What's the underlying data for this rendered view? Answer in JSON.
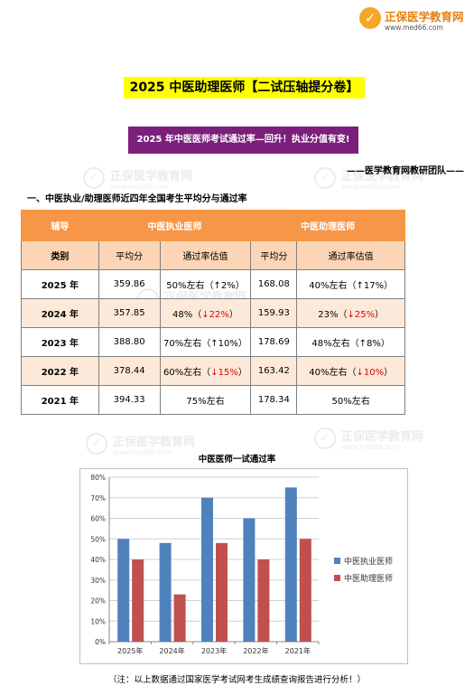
{
  "logo": {
    "glyph": "✓",
    "name": "正保医学教育网",
    "url": "www.med66.com"
  },
  "watermark": {
    "name": "正保医学教育网",
    "url": "www.med66.com"
  },
  "title": "2025 中医助理医师【二试压轴提分卷】",
  "subtitle": "2025 年中医医师考试通过率—回升！执业分值有变!",
  "author": "——医学教育网教研团队——",
  "section_heading": "一、中医执业/助理医师近四年全国考生平均分与通过率",
  "table": {
    "group_header": {
      "col0": "辅导",
      "zhiye": "中医执业医师",
      "zhuli": "中医助理医师"
    },
    "sub_header": {
      "col0": "类别",
      "avg": "平均分",
      "rate": "通过率估值",
      "avg2": "平均分",
      "rate2": "通过率估值"
    },
    "rows": [
      {
        "year": "2025 年",
        "zy_avg": "359.86",
        "zy_rate": "50%左右（",
        "zy_arrow": "↑",
        "zy_delta": "2%",
        "zy_close": "）",
        "zy_down": false,
        "zl_avg": "168.08",
        "zl_rate": "40%左右（",
        "zl_arrow": "↑",
        "zl_delta": "17%",
        "zl_close": "）",
        "zl_down": false
      },
      {
        "year": "2024 年",
        "zy_avg": "357.85",
        "zy_rate": "48%（",
        "zy_arrow": "↓",
        "zy_delta": "22%",
        "zy_close": "）",
        "zy_down": true,
        "zl_avg": "159.93",
        "zl_rate": "23%（",
        "zl_arrow": "↓",
        "zl_delta": "25%",
        "zl_close": "）",
        "zl_down": true
      },
      {
        "year": "2023 年",
        "zy_avg": "388.80",
        "zy_rate": "70%左右（",
        "zy_arrow": "↑",
        "zy_delta": "10%",
        "zy_close": "）",
        "zy_down": false,
        "zl_avg": "178.69",
        "zl_rate": "48%左右（",
        "zl_arrow": "↑",
        "zl_delta": "8%",
        "zl_close": "）",
        "zl_down": false
      },
      {
        "year": "2022 年",
        "zy_avg": "378.44",
        "zy_rate": "60%左右（",
        "zy_arrow": "↓",
        "zy_delta": "15%",
        "zy_close": "）",
        "zy_down": true,
        "zl_avg": "163.42",
        "zl_rate": "40%左右（",
        "zl_arrow": "↓",
        "zl_delta": "10%",
        "zl_close": "）",
        "zl_down": true
      },
      {
        "year": "2021 年",
        "zy_avg": "394.33",
        "zy_rate": "75%左右",
        "zy_arrow": "",
        "zy_delta": "",
        "zy_close": "",
        "zy_down": false,
        "zl_avg": "178.34",
        "zl_rate": "50%左右",
        "zl_arrow": "",
        "zl_delta": "",
        "zl_close": "",
        "zl_down": false
      }
    ]
  },
  "chart_data": {
    "type": "bar",
    "title": "中医医师一试通过率",
    "categories": [
      "2025年",
      "2024年",
      "2023年",
      "2022年",
      "2021年"
    ],
    "series": [
      {
        "name": "中医执业医师",
        "values": [
          50,
          48,
          70,
          60,
          75
        ],
        "color": "#4f81bd"
      },
      {
        "name": "中医助理医师",
        "values": [
          40,
          23,
          48,
          40,
          50
        ],
        "color": "#c0504d"
      }
    ],
    "yticks": [
      "0%",
      "10%",
      "20%",
      "30%",
      "40%",
      "50%",
      "60%",
      "70%",
      "80%"
    ],
    "ylim": [
      0,
      80
    ],
    "grid": true,
    "legend": "right"
  },
  "footnote": "（注：以上数据通过国家医学考试网考生成绩查询报告进行分析！）",
  "colors": {
    "title_bg": "#ffff00",
    "subtitle_bg": "#7b1f7b",
    "header": "#f79646",
    "subheader": "#fbd5b5",
    "alt_row": "#fde9d9",
    "down": "#e00000"
  }
}
